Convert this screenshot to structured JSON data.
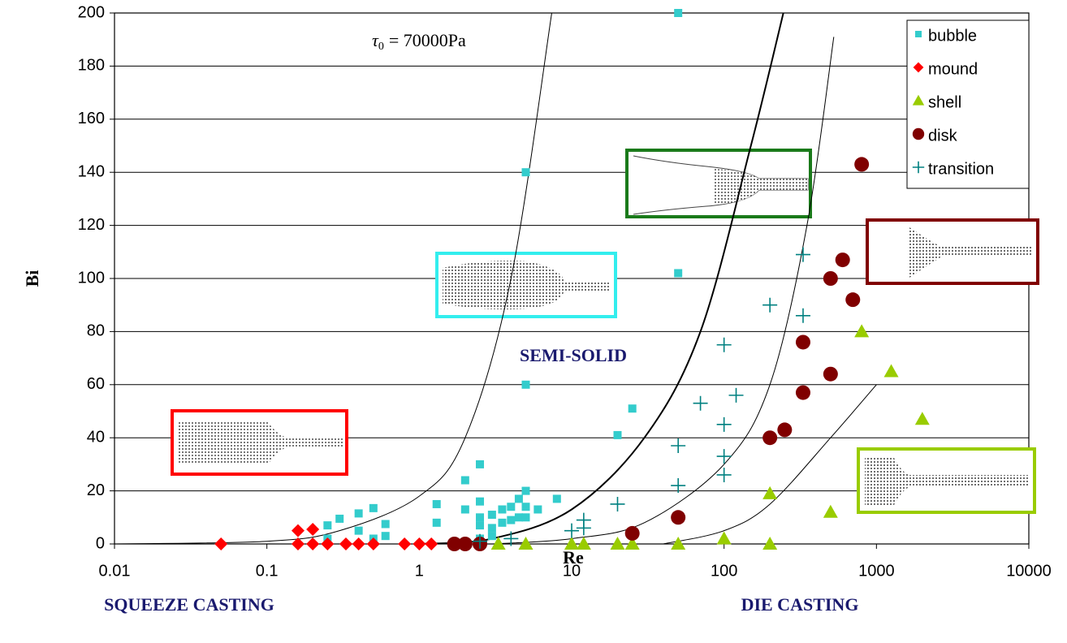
{
  "chart_data": {
    "type": "scatter",
    "x_label": "Re",
    "y_label": "Bi",
    "xscale": "log",
    "xlim": [
      0.01,
      10000
    ],
    "xticks": [
      0.01,
      0.1,
      1,
      10,
      100,
      1000,
      10000
    ],
    "ylim": [
      0,
      200
    ],
    "yticks": [
      0,
      20,
      40,
      60,
      80,
      100,
      120,
      140,
      160,
      180,
      200
    ],
    "grid": true,
    "legend": "top-right",
    "annotations": {
      "tau": {
        "symbol": "τ",
        "subscript": "0",
        "text": "= 70000Pa"
      },
      "center": "SEMI-SOLID",
      "left": "SQUEEZE CASTING",
      "right": "DIE CASTING"
    },
    "series": [
      {
        "name": "bubble",
        "color": "#33cccc",
        "marker": "square",
        "x": [
          0.25,
          0.3,
          0.4,
          0.5,
          0.4,
          0.6,
          0.6,
          0.5,
          0.25,
          1.3,
          1.3,
          2,
          2,
          2.5,
          2.5,
          2.5,
          2.5,
          3,
          3,
          3.5,
          3.5,
          4,
          4,
          4.5,
          4.5,
          5,
          5,
          5,
          6,
          8,
          2.5,
          3,
          20,
          25,
          5,
          5,
          50,
          50
        ],
        "y": [
          7,
          9.5,
          11.5,
          13.5,
          5,
          7.5,
          3,
          2,
          2,
          15,
          8,
          24,
          13,
          30,
          16,
          10,
          7,
          11,
          6,
          13,
          8,
          14,
          9,
          17,
          10,
          20,
          14,
          10,
          13,
          17,
          2,
          3,
          41,
          51,
          60,
          140,
          102,
          200
        ]
      },
      {
        "name": "mound",
        "color": "#ff0000",
        "marker": "diamond",
        "x": [
          0.05,
          0.16,
          0.2,
          0.25,
          0.33,
          0.4,
          0.5,
          0.8,
          1,
          1.2,
          0.16,
          0.2
        ],
        "y": [
          0,
          0,
          0,
          0,
          0,
          0,
          0,
          0,
          0,
          0,
          5,
          5.5
        ]
      },
      {
        "name": "shell",
        "color": "#99cc00",
        "marker": "triangle",
        "x": [
          3.3,
          5,
          10,
          12,
          20,
          25,
          50,
          100,
          200,
          200,
          500,
          800,
          1250,
          2000
        ],
        "y": [
          0,
          0,
          0,
          0,
          0,
          0,
          0,
          2,
          19,
          0,
          12,
          80,
          65,
          47
        ]
      },
      {
        "name": "disk",
        "color": "#800000",
        "marker": "circle",
        "x": [
          1.7,
          2,
          2.5,
          25,
          50,
          200,
          250,
          330,
          330,
          500,
          500,
          600,
          700,
          800
        ],
        "y": [
          0,
          0,
          0,
          4,
          10,
          40,
          43,
          57,
          76,
          64,
          100,
          107,
          92,
          143
        ]
      },
      {
        "name": "transition",
        "color": "#008080",
        "marker": "plus",
        "x": [
          2.5,
          4,
          10,
          12,
          12,
          20,
          50,
          50,
          70,
          100,
          100,
          100,
          100,
          120,
          200,
          330,
          330
        ],
        "y": [
          1,
          2,
          5,
          6,
          9,
          15,
          22,
          37,
          53,
          75,
          45,
          33,
          26,
          56,
          90,
          109,
          86
        ]
      }
    ],
    "curves": [
      {
        "x": [
          0.01,
          0.1,
          0.3,
          1,
          2,
          4,
          7.4
        ],
        "y": [
          0,
          1,
          5,
          18,
          40,
          100,
          200
        ],
        "width": 1
      },
      {
        "x": [
          1,
          3,
          10,
          30,
          70,
          150,
          245
        ],
        "y": [
          0,
          2,
          13,
          40,
          80,
          150,
          200
        ],
        "width": 2
      },
      {
        "x": [
          3,
          10,
          30,
          100,
          200,
          350,
          525
        ],
        "y": [
          0,
          2,
          8,
          30,
          60,
          120,
          191
        ],
        "width": 1
      },
      {
        "x": [
          40,
          100,
          200,
          500,
          1000
        ],
        "y": [
          0,
          5,
          15,
          40,
          60
        ],
        "width": 1
      }
    ]
  }
}
